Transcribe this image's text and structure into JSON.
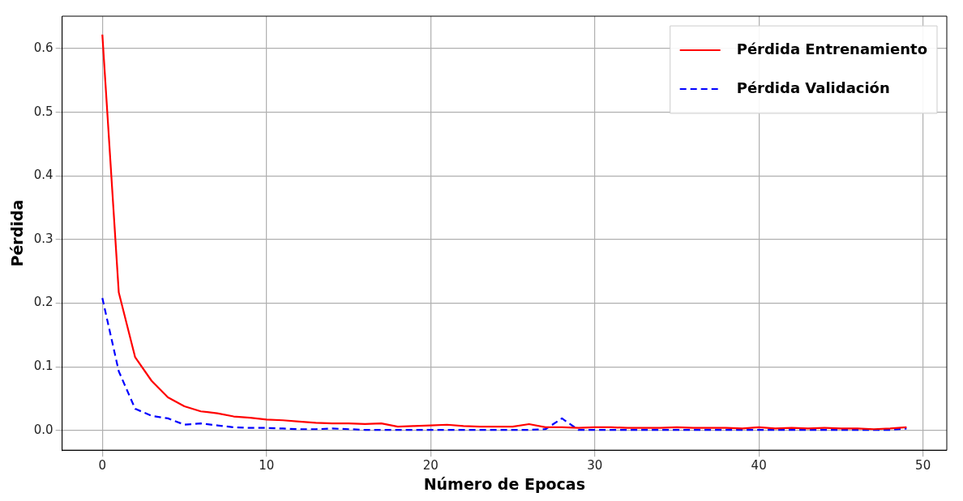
{
  "chart_data": {
    "type": "line",
    "xlabel": "Número de Epocas",
    "ylabel": "Pérdida",
    "x": [
      0,
      1,
      2,
      3,
      4,
      5,
      6,
      7,
      8,
      9,
      10,
      11,
      12,
      13,
      14,
      15,
      16,
      17,
      18,
      19,
      20,
      21,
      22,
      23,
      24,
      25,
      26,
      27,
      28,
      29,
      30,
      31,
      32,
      33,
      34,
      35,
      36,
      37,
      38,
      39,
      40,
      41,
      42,
      43,
      44,
      45,
      46,
      47,
      48,
      49
    ],
    "series": [
      {
        "name": "Pérdida Entrenamiento",
        "color": "#ff0000",
        "line_style": "solid",
        "values": [
          0.622,
          0.217,
          0.115,
          0.078,
          0.052,
          0.038,
          0.03,
          0.027,
          0.022,
          0.02,
          0.017,
          0.016,
          0.014,
          0.012,
          0.011,
          0.011,
          0.01,
          0.011,
          0.006,
          0.007,
          0.008,
          0.009,
          0.007,
          0.006,
          0.006,
          0.006,
          0.01,
          0.005,
          0.005,
          0.004,
          0.005,
          0.005,
          0.004,
          0.004,
          0.004,
          0.005,
          0.004,
          0.004,
          0.004,
          0.003,
          0.005,
          0.003,
          0.004,
          0.003,
          0.004,
          0.003,
          0.003,
          0.002,
          0.003,
          0.005
        ]
      },
      {
        "name": "Pérdida Validación",
        "color": "#0000ff",
        "line_style": "dashed",
        "values": [
          0.208,
          0.093,
          0.034,
          0.023,
          0.019,
          0.009,
          0.011,
          0.008,
          0.005,
          0.004,
          0.004,
          0.003,
          0.002,
          0.002,
          0.003,
          0.002,
          0.001,
          0.001,
          0.001,
          0.001,
          0.001,
          0.001,
          0.001,
          0.001,
          0.001,
          0.001,
          0.001,
          0.002,
          0.019,
          0.001,
          0.001,
          0.001,
          0.001,
          0.001,
          0.001,
          0.001,
          0.001,
          0.001,
          0.001,
          0.001,
          0.001,
          0.001,
          0.001,
          0.001,
          0.001,
          0.001,
          0.001,
          0.001,
          0.001,
          0.003
        ]
      }
    ],
    "xlim": [
      -2.45,
      51.45
    ],
    "xticks": [
      0,
      10,
      20,
      30,
      40,
      50
    ],
    "ylim": [
      -0.031,
      0.651
    ],
    "yticks": [
      {
        "value": 0,
        "label": "0.0"
      },
      {
        "value": 0.1,
        "label": "0.1"
      },
      {
        "value": 0.2,
        "label": "0.2"
      },
      {
        "value": 0.3,
        "label": "0.3"
      },
      {
        "value": 0.4,
        "label": "0.4"
      },
      {
        "value": 0.5,
        "label": "0.5"
      },
      {
        "value": 0.6,
        "label": "0.6"
      }
    ],
    "grid": true,
    "legend": "top right",
    "marker": "none"
  }
}
